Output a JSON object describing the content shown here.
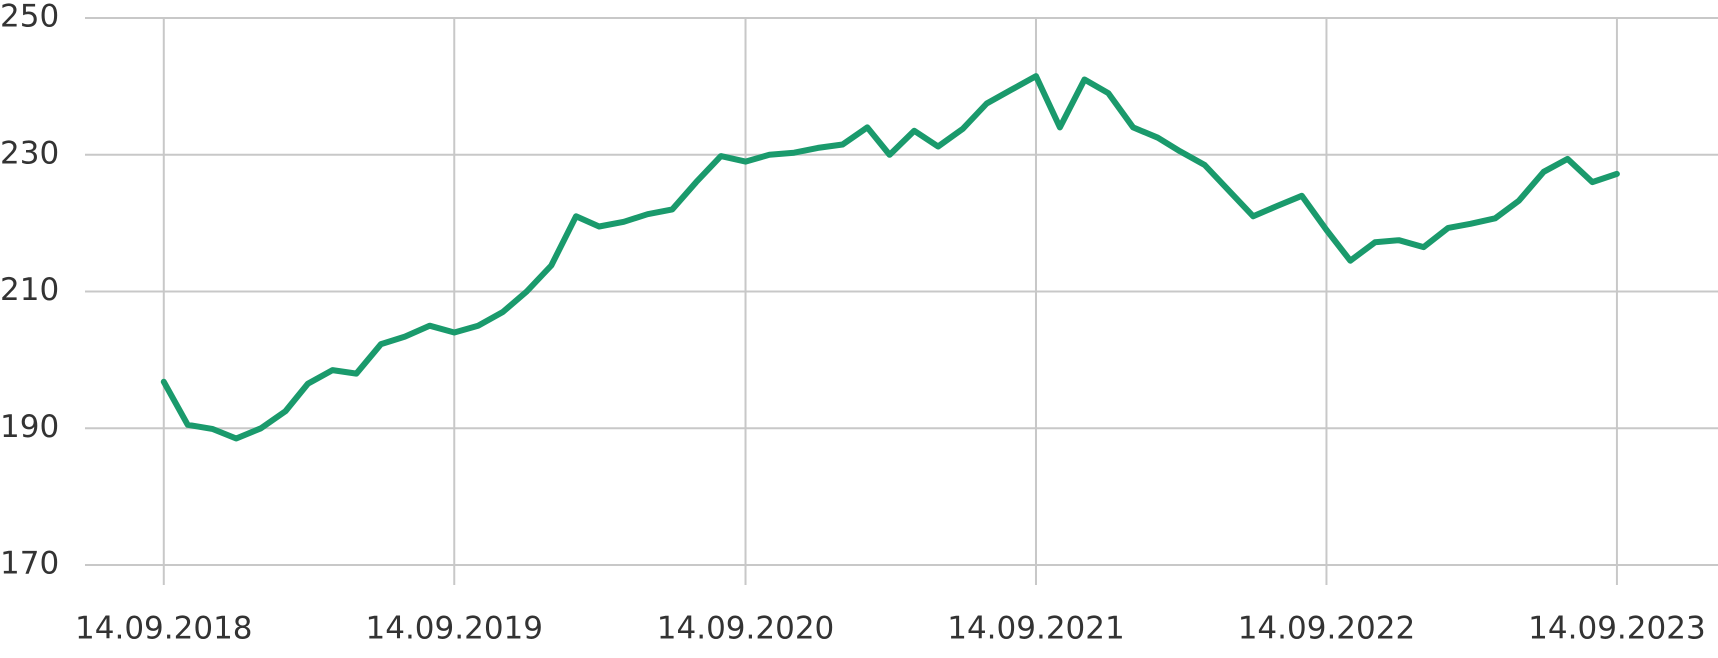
{
  "chart_data": {
    "type": "line",
    "x": [
      "14.09.2018",
      "14.10.2018",
      "14.11.2018",
      "14.12.2018",
      "14.01.2019",
      "14.02.2019",
      "14.03.2019",
      "14.04.2019",
      "14.05.2019",
      "14.06.2019",
      "14.07.2019",
      "14.08.2019",
      "14.09.2019",
      "14.10.2019",
      "14.11.2019",
      "14.12.2019",
      "14.01.2020",
      "14.02.2020",
      "14.03.2020",
      "14.04.2020",
      "14.05.2020",
      "14.06.2020",
      "14.07.2020",
      "14.08.2020",
      "14.09.2020",
      "14.10.2020",
      "14.11.2020",
      "14.12.2020",
      "14.01.2021",
      "14.02.2021",
      "14.03.2021",
      "14.04.2021",
      "14.05.2021",
      "14.06.2021",
      "14.07.2021",
      "14.08.2021",
      "14.09.2021",
      "14.10.2021",
      "14.11.2021",
      "14.12.2021",
      "14.01.2022",
      "14.02.2022",
      "14.03.2022",
      "14.04.2022",
      "14.05.2022",
      "14.06.2022",
      "14.07.2022",
      "14.08.2022",
      "14.09.2022",
      "14.10.2022",
      "14.11.2022",
      "14.12.2022",
      "14.01.2023",
      "14.02.2023",
      "14.03.2023",
      "14.04.2023",
      "14.05.2023",
      "14.06.2023",
      "14.07.2023",
      "14.08.2023",
      "14.09.2023"
    ],
    "series": [
      {
        "color": "#1a9a6c",
        "values": [
          196.8,
          190.5,
          189.9,
          188.5,
          190,
          192.5,
          196.5,
          198.5,
          198,
          202.3,
          203.4,
          205,
          204,
          205,
          207,
          210,
          213.8,
          221,
          219.5,
          220.2,
          221.3,
          222,
          226,
          229.8,
          229,
          230,
          230.3,
          231,
          231.5,
          234,
          230,
          233.5,
          231.2,
          233.8,
          237.5,
          239.5,
          241.5,
          234,
          241,
          239,
          234,
          232.5,
          230.5,
          228.5,
          224.8,
          221,
          222.5,
          224,
          219,
          214.5,
          217.2,
          217.5,
          216.5,
          219.3,
          219.9,
          220.7,
          223.3,
          227.5,
          229.4,
          226,
          227.2
        ]
      }
    ],
    "xlim": [
      "07.06.2018",
      "19.01.2024"
    ],
    "xticks": [
      "14.09.2018",
      "14.09.2019",
      "14.09.2020",
      "14.09.2021",
      "14.09.2022",
      "14.09.2023"
    ],
    "ylim": [
      170,
      250
    ],
    "yticks": [
      170,
      190,
      210,
      230,
      250
    ],
    "grid": true
  }
}
